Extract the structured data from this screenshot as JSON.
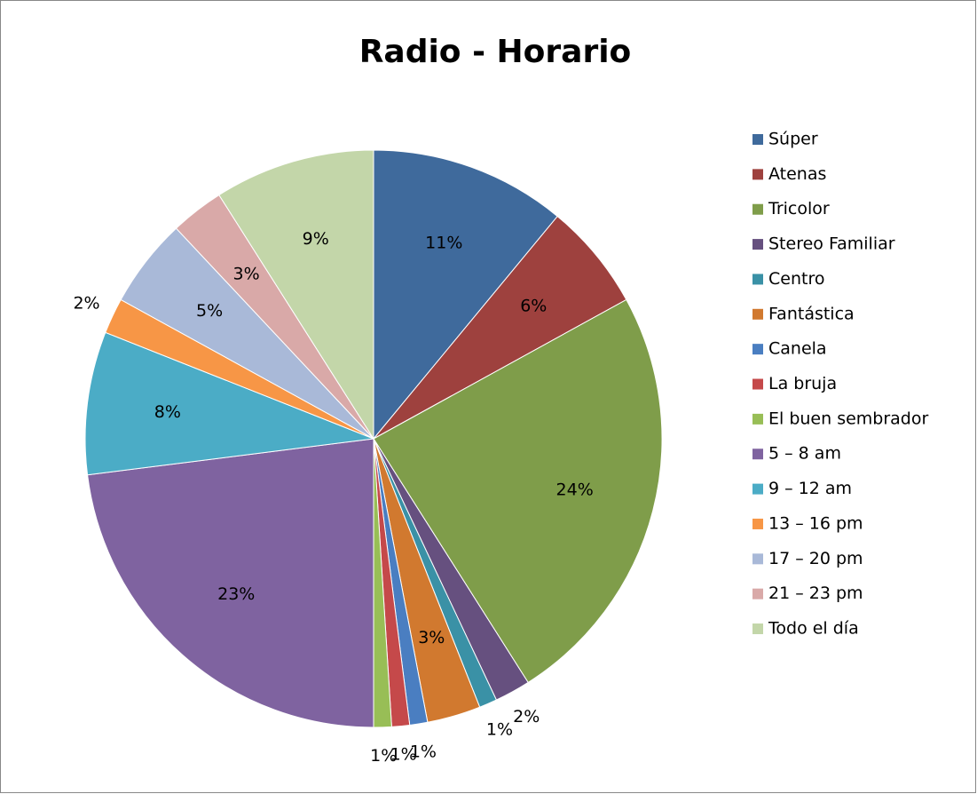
{
  "chart_data": {
    "type": "pie",
    "title": "Radio - Horario",
    "categories": [
      "Súper",
      "Atenas",
      "Tricolor",
      "Stereo Familiar",
      "Centro",
      "Fantástica",
      "Canela",
      "La bruja",
      "El buen sembrador",
      "5 – 8 am",
      "9 – 12 am",
      "13 – 16 pm",
      "17 – 20 pm",
      "21 – 23 pm",
      "Todo el día"
    ],
    "values": [
      11,
      6,
      24,
      2,
      1,
      3,
      1,
      1,
      1,
      23,
      8,
      2,
      5,
      3,
      9
    ],
    "value_labels": [
      "11%",
      "6%",
      "24%",
      "2%",
      "1%",
      "3%",
      "1%",
      "1%",
      "1%",
      "23%",
      "8%",
      "2%",
      "5%",
      "3%",
      "9%"
    ],
    "colors": [
      "#3f6a9c",
      "#9e413e",
      "#7f9d4a",
      "#66507f",
      "#3a91a6",
      "#d1792f",
      "#4a7ec1",
      "#c5494a",
      "#98be56",
      "#7f63a0",
      "#4bacc6",
      "#f79646",
      "#a9b9d8",
      "#d9a9a8",
      "#c3d6a9"
    ],
    "legend": "right"
  }
}
